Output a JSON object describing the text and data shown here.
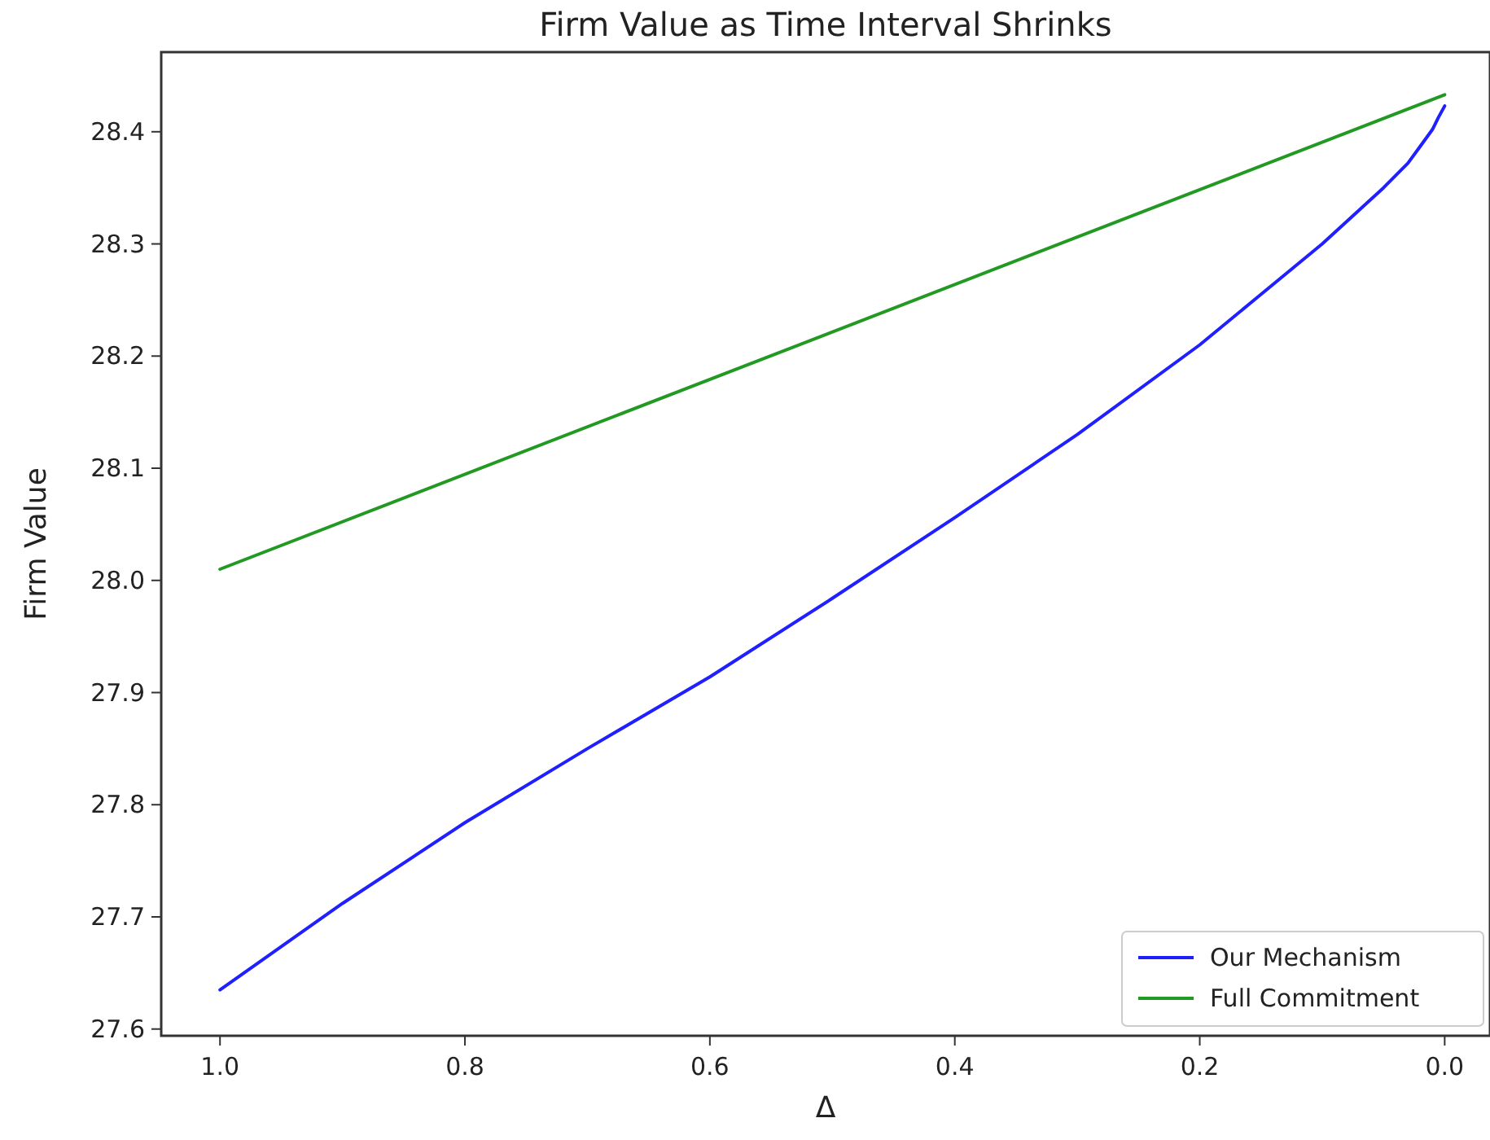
{
  "chart_data": {
    "type": "line",
    "title": "Firm Value as Time Interval Shrinks",
    "xlabel": "Δ",
    "ylabel": "Firm Value",
    "xlim": [
      1.048,
      -0.037
    ],
    "xticks": [
      {
        "value": 1,
        "label": "1.0"
      },
      0.8,
      0.6,
      0.4,
      0.2,
      {
        "value": 0,
        "label": "0.0"
      }
    ],
    "ylim": [
      27.594,
      28.471
    ],
    "yticks": [
      {
        "value": 27.6,
        "label": "27.6"
      },
      27.7,
      27.8,
      27.9,
      {
        "value": 28,
        "label": "28.0"
      },
      28.1,
      28.2,
      28.3,
      28.4
    ],
    "grid": false,
    "legend": "bottom right",
    "line_style": "solid",
    "series": [
      {
        "name": "Our Mechanism",
        "color": "#1f1fff",
        "x": [
          1,
          0.9,
          0.8,
          0.7,
          0.6,
          0.5,
          0.4,
          0.3,
          0.2,
          0.15,
          0.1,
          0.07,
          0.05,
          0.03,
          0.02,
          0.01,
          0.005,
          0
        ],
        "values": [
          27.635,
          27.712,
          27.784,
          27.85,
          27.914,
          27.984,
          28.056,
          28.13,
          28.21,
          28.255,
          28.3,
          28.33,
          28.35,
          28.372,
          28.387,
          28.402,
          28.413,
          28.423
        ]
      },
      {
        "name": "Full Commitment",
        "color": "#229922",
        "x": [
          1,
          0
        ],
        "values": [
          28.01,
          28.433
        ]
      }
    ]
  }
}
